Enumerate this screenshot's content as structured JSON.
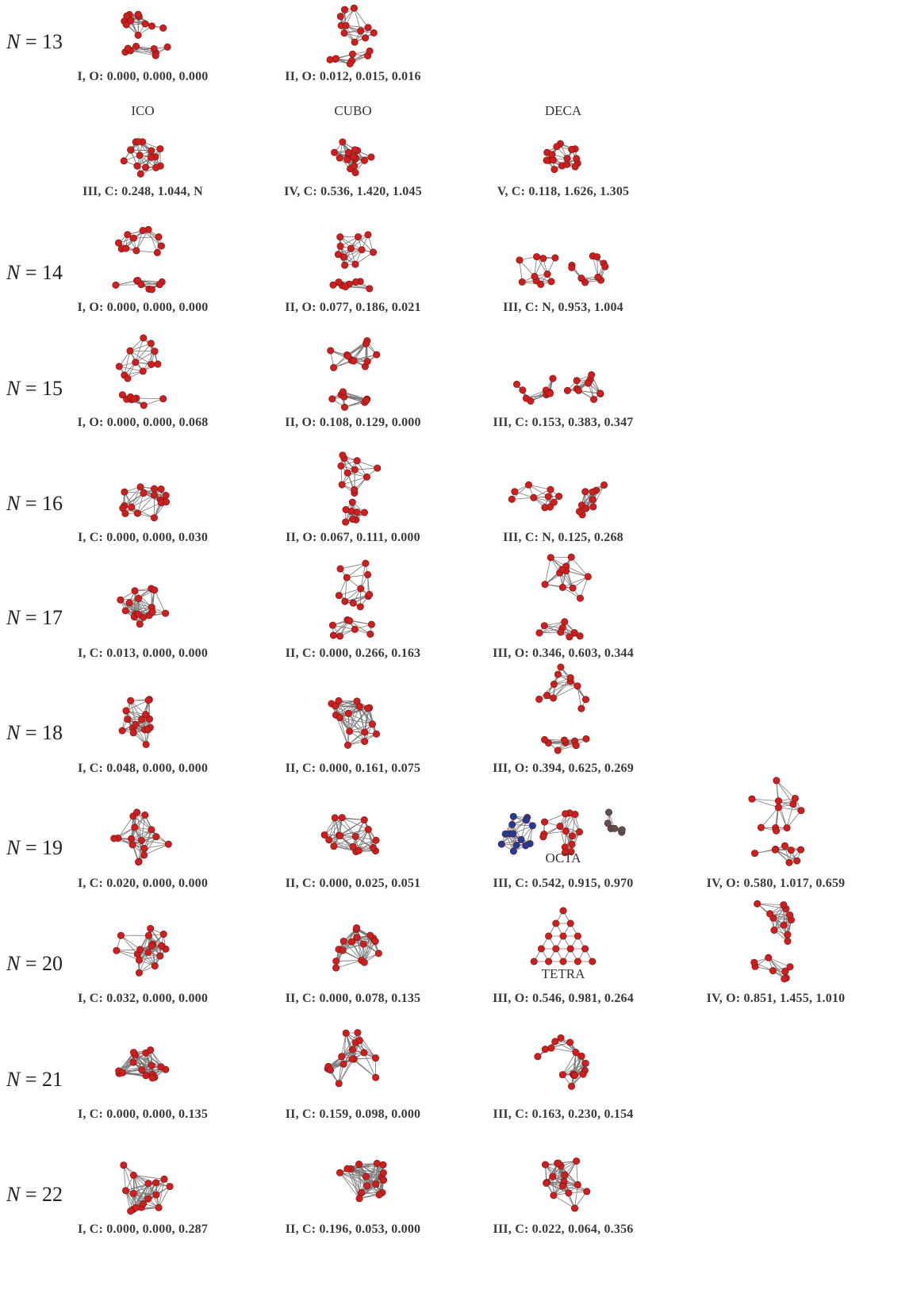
{
  "rows": [
    {
      "id": "13a",
      "label": "N = 13",
      "clusters": [
        {
          "caption": "I, O: 0.000, 0.000, 0.000"
        },
        {
          "caption": "II, O: 0.012, 0.015, 0.016"
        }
      ]
    },
    {
      "id": "13b",
      "label": "",
      "clusters": [
        {
          "tag": "ICO",
          "caption": "III, C: 0.248, 1.044, N"
        },
        {
          "tag": "CUBO",
          "caption": "IV, C: 0.536, 1.420, 1.045"
        },
        {
          "tag": "DECA",
          "caption": "V, C: 0.118, 1.626, 1.305"
        }
      ]
    },
    {
      "id": "14",
      "label": "N = 14",
      "clusters": [
        {
          "caption": "I, O: 0.000, 0.000, 0.000"
        },
        {
          "caption": "II, O: 0.077, 0.186, 0.021"
        },
        {
          "caption": "III, C: N, 0.953, 1.004"
        }
      ]
    },
    {
      "id": "15",
      "label": "N = 15",
      "clusters": [
        {
          "caption": "I, O: 0.000, 0.000, 0.068"
        },
        {
          "caption": "II, O: 0.108, 0.129, 0.000"
        },
        {
          "caption": "III, C: 0.153, 0.383, 0.347"
        }
      ]
    },
    {
      "id": "16",
      "label": "N = 16",
      "clusters": [
        {
          "caption": "I, C: 0.000, 0.000, 0.030"
        },
        {
          "caption": "II, O: 0.067, 0.111, 0.000"
        },
        {
          "caption": "III, C: N, 0.125, 0.268"
        }
      ]
    },
    {
      "id": "17",
      "label": "N = 17",
      "clusters": [
        {
          "caption": "I, C: 0.013, 0.000, 0.000"
        },
        {
          "caption": "II, C: 0.000, 0.266, 0.163"
        },
        {
          "caption": "III, O: 0.346, 0.603, 0.344"
        }
      ]
    },
    {
      "id": "18",
      "label": "N = 18",
      "clusters": [
        {
          "caption": "I, C: 0.048, 0.000, 0.000"
        },
        {
          "caption": "II, C: 0.000, 0.161, 0.075"
        },
        {
          "caption": "III, O: 0.394, 0.625, 0.269"
        }
      ]
    },
    {
      "id": "19",
      "label": "N = 19",
      "clusters": [
        {
          "caption": "I, C: 0.020, 0.000, 0.000"
        },
        {
          "caption": "II, C: 0.000, 0.025, 0.051"
        },
        {
          "tag": "OCTA",
          "caption": "III, C: 0.542, 0.915, 0.970"
        },
        {
          "caption": "IV, O: 0.580, 1.017, 0.659"
        }
      ]
    },
    {
      "id": "20",
      "label": "N = 20",
      "clusters": [
        {
          "caption": "I, C: 0.032, 0.000, 0.000"
        },
        {
          "caption": "II, C: 0.000, 0.078, 0.135"
        },
        {
          "tag": "TETRA",
          "caption": "III, O: 0.546, 0.981, 0.264"
        },
        {
          "caption": "IV, O: 0.851, 1.455, 1.010"
        }
      ]
    },
    {
      "id": "21",
      "label": "N = 21",
      "clusters": [
        {
          "caption": "I, C: 0.000, 0.000, 0.135"
        },
        {
          "caption": "II, C: 0.159, 0.098, 0.000"
        },
        {
          "caption": "III, C: 0.163, 0.230, 0.154"
        }
      ]
    },
    {
      "id": "22",
      "label": "N = 22",
      "clusters": [
        {
          "caption": "I, C: 0.000, 0.000, 0.287"
        },
        {
          "caption": "II, C: 0.196, 0.053, 0.000"
        },
        {
          "caption": "III, C: 0.022, 0.064, 0.356"
        }
      ]
    }
  ],
  "colors": {
    "atom": "#cc2020",
    "atom_alt_blue": "#1f3d99",
    "atom_alt_gray": "#555555",
    "bond": "#777777",
    "text": "#333333"
  }
}
